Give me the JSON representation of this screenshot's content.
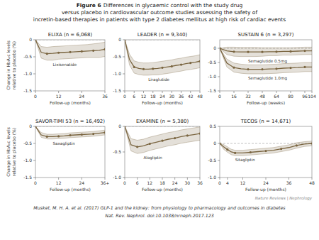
{
  "title": "Figure 6",
  "subtitle": [
    "Differences in glycaemic control with the study drug",
    "versus placebo in cardiovascular outcome studies assessing the safety of",
    "incretin-based therapies in patients with type 2 diabetes mellitus at high risk of cardiac events"
  ],
  "annotations": [
    "Nature Reviews | Nephrology",
    "Musket, M. H. A. et al. (2017) GLP-1 and the kidney: from physiology to pharmacology and outcomes in diabetes",
    "Nat. Rev. Nephrol. doi:10.1038/nrneph.2017.123"
  ],
  "chart_data": [
    {
      "type": "line",
      "title": "ELIXA (n = 6,068)",
      "xlabel": "Follow-up (months)",
      "ylabel": "Change in HbA₁c levels\nrelative to placebo (%)",
      "x": [
        0,
        3,
        6,
        9,
        12,
        15,
        18,
        21,
        24,
        27,
        30,
        33,
        36
      ],
      "xlim": [
        0,
        36
      ],
      "xticks": [
        0,
        12,
        24,
        36
      ],
      "ylim": [
        -1.5,
        0.0
      ],
      "yticks": [
        0,
        -0.5,
        {
          "value": -1.0,
          "label": "-1.0"
        },
        -1.5
      ],
      "series": [
        {
          "name": "Lixisenatide",
          "color": "#7a6540",
          "marker": "circle",
          "values": [
            0.0,
            -0.37,
            -0.41,
            -0.4,
            -0.38,
            -0.37,
            -0.36,
            -0.35,
            -0.34,
            -0.33,
            -0.32,
            -0.31,
            -0.28
          ],
          "upper": [
            0.0,
            -0.2,
            -0.22,
            -0.2,
            -0.19,
            -0.18,
            -0.17,
            -0.16,
            -0.15,
            -0.14,
            -0.12,
            -0.1,
            -0.07
          ],
          "lower": [
            0.0,
            -0.54,
            -0.6,
            -0.6,
            -0.57,
            -0.56,
            -0.55,
            -0.54,
            -0.53,
            -0.52,
            -0.52,
            -0.52,
            -0.49
          ]
        }
      ]
    },
    {
      "type": "line",
      "title": "LEADER (n = 9,340)",
      "xlabel": "Follow-up (months)",
      "x": [
        0,
        3,
        6,
        9,
        12,
        15,
        18,
        21,
        24,
        27,
        30,
        33,
        36,
        39,
        42,
        45,
        48
      ],
      "xlim": [
        0,
        48
      ],
      "xticks": [
        0,
        6,
        12,
        18,
        24,
        30,
        36,
        42,
        48
      ],
      "ylim": [
        -1.5,
        0.0
      ],
      "yticks": [
        0,
        -0.5,
        {
          "value": -1.0,
          "label": "-1.0"
        },
        -1.5
      ],
      "series": [
        {
          "name": "Liraglutide",
          "color": "#7a6540",
          "marker": "circle",
          "values": [
            0.0,
            -0.58,
            -0.8,
            -0.84,
            -0.86,
            -0.86,
            -0.85,
            -0.84,
            -0.82,
            -0.8,
            -0.78,
            -0.75,
            -0.73,
            -0.7,
            -0.68,
            -0.66,
            -0.63
          ],
          "upper": [
            0.0,
            -0.42,
            -0.62,
            -0.66,
            -0.68,
            -0.68,
            -0.67,
            -0.65,
            -0.63,
            -0.61,
            -0.59,
            -0.56,
            -0.54,
            -0.51,
            -0.49,
            -0.47,
            -0.44
          ],
          "lower": [
            0.0,
            -0.74,
            -0.98,
            -1.02,
            -1.04,
            -1.04,
            -1.03,
            -1.03,
            -1.01,
            -0.99,
            -0.97,
            -0.94,
            -0.92,
            -0.89,
            -0.87,
            -0.85,
            -0.82
          ]
        }
      ]
    },
    {
      "type": "line",
      "title": "SUSTAIN 6 (n = 3,297)",
      "xlabel": "Follow-up (weeks)",
      "x": [
        0,
        8,
        16,
        24,
        32,
        40,
        48,
        56,
        64,
        72,
        80,
        88,
        96,
        104
      ],
      "xlim": [
        0,
        104
      ],
      "xticks": [
        0,
        16,
        32,
        48,
        64,
        80,
        96,
        104
      ],
      "ylim": [
        -1.5,
        0.3
      ],
      "yticks": [
        0,
        -0.5,
        {
          "value": -1.0,
          "label": "-1.0"
        },
        -1.5
      ],
      "series": [
        {
          "name": "Semaglutide 0.5mg",
          "color": "#7a6540",
          "marker": "circle",
          "values": [
            0.0,
            -0.09,
            -0.12,
            -0.13,
            -0.13,
            -0.13,
            -0.13,
            -0.12,
            -0.12,
            -0.11,
            -0.11,
            -0.1,
            -0.09,
            -0.09
          ],
          "upper": [
            0.0,
            0.04,
            0.04,
            0.03,
            0.03,
            0.03,
            0.02,
            0.02,
            0.02,
            0.02,
            0.02,
            0.03,
            0.04,
            0.04
          ],
          "lower": [
            0.0,
            -0.22,
            -0.28,
            -0.29,
            -0.29,
            -0.29,
            -0.28,
            -0.26,
            -0.26,
            -0.24,
            -0.24,
            -0.23,
            -0.22,
            -0.22
          ]
        },
        {
          "name": "Semaglutide 1.0mg",
          "color": "#7a6540",
          "marker": "circle",
          "values": [
            0.0,
            -0.52,
            -0.68,
            -0.72,
            -0.74,
            -0.74,
            -0.74,
            -0.73,
            -0.72,
            -0.7,
            -0.69,
            -0.68,
            -0.66,
            -0.66
          ],
          "upper": [
            0.0,
            -0.38,
            -0.52,
            -0.56,
            -0.58,
            -0.58,
            -0.58,
            -0.57,
            -0.56,
            -0.54,
            -0.53,
            -0.52,
            -0.5,
            -0.5
          ],
          "lower": [
            0.0,
            -0.66,
            -0.84,
            -0.88,
            -0.9,
            -0.9,
            -0.9,
            -0.89,
            -0.88,
            -0.86,
            -0.85,
            -0.84,
            -0.82,
            -0.82
          ]
        }
      ]
    },
    {
      "type": "line",
      "title": "SAVOR-TIMI 53 (n = 16,492)",
      "xlabel": "Follow-up (months)",
      "ylabel": "Change in HbA₁c levels\nrelative to placebo (%)",
      "x": [
        0,
        3,
        6,
        9,
        12,
        15,
        18,
        21,
        24,
        27,
        30,
        33,
        36
      ],
      "xlim": [
        0,
        36
      ],
      "xticks": [
        0,
        12,
        24,
        {
          "value": 36,
          "label": "36+"
        }
      ],
      "ylim": [
        -1.5,
        0.0
      ],
      "yticks": [
        0,
        -0.5,
        {
          "value": -1.0,
          "label": "-1.0"
        },
        -1.5
      ],
      "series": [
        {
          "name": "Saxagliptin",
          "color": "#7a6540",
          "marker": "circle",
          "values": [
            0.0,
            -0.25,
            -0.3,
            -0.3,
            -0.29,
            -0.28,
            -0.26,
            -0.25,
            -0.24,
            -0.23,
            -0.22,
            -0.2,
            -0.18
          ],
          "upper": [
            0.0,
            -0.18,
            -0.23,
            -0.23,
            -0.22,
            -0.21,
            -0.19,
            -0.18,
            -0.17,
            -0.16,
            -0.15,
            -0.13,
            -0.11
          ],
          "lower": [
            0.0,
            -0.32,
            -0.37,
            -0.37,
            -0.36,
            -0.35,
            -0.33,
            -0.32,
            -0.31,
            -0.3,
            -0.29,
            -0.27,
            -0.25
          ]
        }
      ]
    },
    {
      "type": "line",
      "title": "EXAMINE (n = 5,380)",
      "xlabel": "Follow-up (months)",
      "x": [
        0,
        3,
        6,
        9,
        12,
        15,
        18,
        21,
        24,
        27,
        30,
        33,
        36
      ],
      "xlim": [
        0,
        36
      ],
      "xticks": [
        0,
        6,
        12,
        18,
        24,
        30,
        36
      ],
      "ylim": [
        -1.0,
        0.0
      ],
      "yticks": [
        0,
        -0.5,
        {
          "value": -1.0,
          "label": "-1.0"
        }
      ],
      "series": [
        {
          "name": "Alogliptin",
          "color": "#7a6540",
          "marker": "circle",
          "values": [
            0.0,
            -0.36,
            -0.4,
            -0.38,
            -0.34,
            -0.31,
            -0.28,
            -0.25,
            -0.23,
            -0.2,
            -0.18,
            -0.16,
            -0.14
          ],
          "upper": [
            0.0,
            -0.24,
            -0.27,
            -0.25,
            -0.21,
            -0.18,
            -0.15,
            -0.12,
            -0.1,
            -0.07,
            -0.05,
            -0.03,
            -0.01
          ],
          "lower": [
            0.0,
            -0.48,
            -0.53,
            -0.51,
            -0.47,
            -0.44,
            -0.41,
            -0.38,
            -0.36,
            -0.33,
            -0.31,
            -0.29,
            -0.27
          ]
        }
      ]
    },
    {
      "type": "line",
      "title": "TECOS (n = 14,671)",
      "xlabel": "Follow-up (months)",
      "x": [
        0,
        2,
        4,
        6,
        8,
        12,
        16,
        20,
        24,
        28,
        32,
        36,
        40,
        44,
        48
      ],
      "xlim": [
        0,
        48
      ],
      "xticks": [
        0,
        4,
        12,
        24,
        36,
        48
      ],
      "ylim": [
        -1.0,
        0.5
      ],
      "yticks": [
        0.5,
        0,
        -0.5,
        {
          "value": -1.0,
          "label": "-1.0"
        }
      ],
      "series": [
        {
          "name": "Sitagliptin",
          "color": "#7a6540",
          "marker": "circle",
          "values": [
            0.0,
            -0.1,
            -0.18,
            -0.25,
            -0.28,
            -0.28,
            -0.26,
            -0.24,
            -0.22,
            -0.2,
            -0.16,
            -0.12,
            -0.06,
            -0.02,
            0.0
          ],
          "upper": [
            0.0,
            -0.03,
            -0.1,
            -0.17,
            -0.2,
            -0.2,
            -0.18,
            -0.16,
            -0.14,
            -0.12,
            -0.08,
            -0.04,
            0.02,
            0.05,
            0.07
          ],
          "lower": [
            0.0,
            -0.17,
            -0.26,
            -0.33,
            -0.36,
            -0.36,
            -0.34,
            -0.32,
            -0.3,
            -0.28,
            -0.24,
            -0.2,
            -0.14,
            -0.09,
            -0.07
          ]
        }
      ]
    }
  ]
}
